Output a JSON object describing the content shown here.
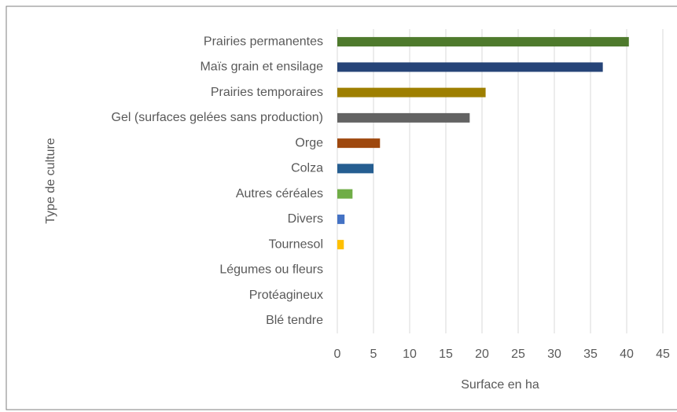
{
  "chart_data": {
    "type": "barh",
    "xlabel": "Surface en ha",
    "ylabel": "Type de culture",
    "categories": [
      "Prairies permanentes",
      "Maïs grain et ensilage",
      "Prairies temporaires",
      "Gel (surfaces gelées sans production)",
      "Orge",
      "Colza",
      "Autres céréales",
      "Divers",
      "Tournesol",
      "Légumes ou fleurs",
      "Protéagineux",
      "Blé tendre"
    ],
    "values": [
      40.3,
      36.7,
      20.5,
      18.3,
      5.9,
      5.0,
      2.1,
      1.0,
      0.9,
      0,
      0,
      0
    ],
    "colors": [
      "#4e7a2c",
      "#264478",
      "#9e7f00",
      "#636363",
      "#9e480e",
      "#255e91",
      "#70ad47",
      "#4472c4",
      "#ffc000",
      "#4e7a2c",
      "#264478",
      "#9e7f00"
    ],
    "xlim": [
      0,
      45
    ],
    "xticks": [
      0,
      5,
      10,
      15,
      20,
      25,
      30,
      35,
      40,
      45
    ],
    "grid": true
  }
}
